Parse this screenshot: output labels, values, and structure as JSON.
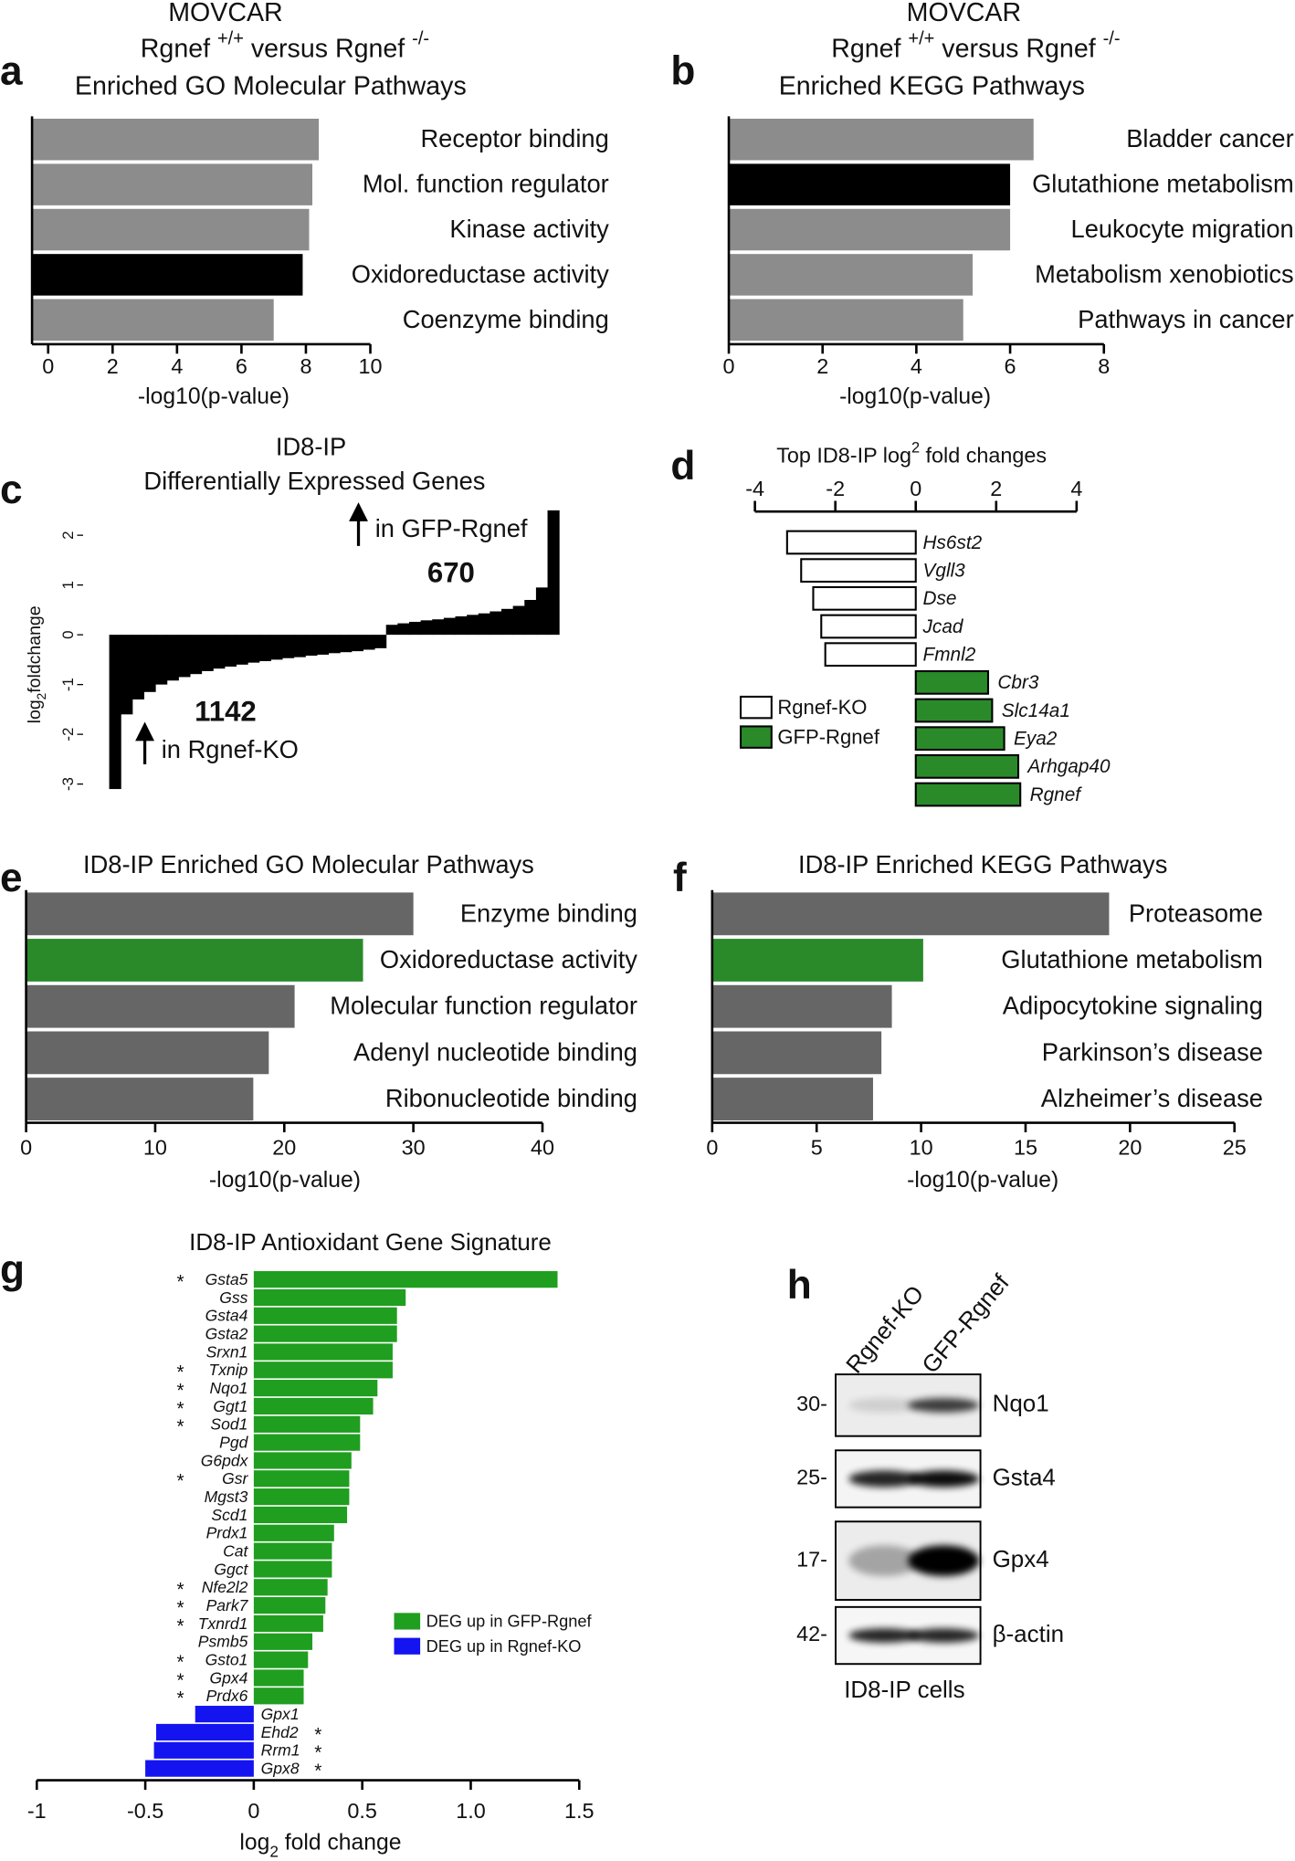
{
  "chart_data": [
    {
      "type": "bar",
      "panel": "a",
      "title": [
        "MOVCAR",
        [
          "Rgnef ",
          "+/+",
          " versus Rgnef ",
          "-/-"
        ],
        "Enriched GO Molecular Pathways"
      ],
      "categories": [
        "Receptor binding",
        "Mol. function regulator",
        "Kinase activity",
        "Oxidoreductase activity",
        "Coenzyme binding"
      ],
      "values": [
        8.4,
        8.2,
        8.1,
        7.9,
        7.0
      ],
      "colors": [
        "#8c8c8c",
        "#8c8c8c",
        "#8c8c8c",
        "#000000",
        "#8c8c8c"
      ],
      "xlabel": "-log10(p-value)",
      "xlim": [
        -0.5,
        10
      ],
      "xticks": [
        0,
        2,
        4,
        6,
        8,
        10
      ]
    },
    {
      "type": "bar",
      "panel": "b",
      "title": [
        "MOVCAR",
        [
          "Rgnef ",
          "+/+",
          " versus Rgnef ",
          "-/-"
        ],
        "Enriched KEGG Pathways"
      ],
      "categories": [
        "Bladder cancer",
        "Glutathione metabolism",
        "Leukocyte migration",
        "Metabolism xenobiotics",
        "Pathways in cancer"
      ],
      "values": [
        6.5,
        6.0,
        6.0,
        5.2,
        5.0
      ],
      "colors": [
        "#8c8c8c",
        "#000000",
        "#8c8c8c",
        "#8c8c8c",
        "#8c8c8c"
      ],
      "xlabel": "-log10(p-value)",
      "xlim": [
        0,
        8
      ],
      "xticks": [
        0,
        2,
        4,
        6,
        8
      ]
    },
    {
      "type": "waterfall",
      "panel": "c",
      "title": [
        "ID8-IP",
        "Differentially Expressed Genes"
      ],
      "ylabel": [
        "log",
        "2",
        "foldchange"
      ],
      "values": [
        -3.1,
        -1.6,
        -1.3,
        -1.15,
        -1.0,
        -0.92,
        -0.85,
        -0.79,
        -0.73,
        -0.68,
        -0.64,
        -0.6,
        -0.56,
        -0.53,
        -0.5,
        -0.47,
        -0.45,
        -0.42,
        -0.4,
        -0.37,
        -0.35,
        -0.33,
        -0.3,
        -0.27,
        0.2,
        0.23,
        0.26,
        0.29,
        0.31,
        0.34,
        0.37,
        0.4,
        0.43,
        0.47,
        0.52,
        0.58,
        0.7,
        0.95,
        2.5
      ],
      "color": "#000000",
      "ylim": [
        -3.2,
        2.5
      ],
      "yticks": [
        -3,
        -2,
        -1,
        0,
        1,
        2
      ],
      "annotations": [
        {
          "text": "in GFP-Rgnef",
          "count": 670,
          "color": "#2a8a2a"
        },
        {
          "text": "in Rgnef-KO",
          "count": 1142,
          "color": "#1a1aee"
        }
      ]
    },
    {
      "type": "diverging",
      "panel": "d",
      "title": [
        [
          "Top ID8-IP log",
          "2",
          " fold changes"
        ]
      ],
      "categories": [
        "Hs6st2",
        "Vgll3",
        "Dse",
        "Jcad",
        "Fmnl2",
        "Cbr3",
        "Slc14a1",
        "Eya2",
        "Arhgap40",
        "Rgnef"
      ],
      "series": [
        {
          "name": "Rgnef-KO",
          "color": "#ffffff",
          "values": [
            -3.2,
            -2.85,
            -2.55,
            -2.35,
            -2.25,
            null,
            null,
            null,
            null,
            null
          ]
        },
        {
          "name": "GFP-Rgnef",
          "color": "#2a8a2a",
          "values": [
            null,
            null,
            null,
            null,
            null,
            1.8,
            1.9,
            2.2,
            2.55,
            2.6
          ]
        }
      ],
      "xlim": [
        -4,
        4
      ],
      "xticks": [
        -4,
        -2,
        0,
        2,
        4
      ]
    },
    {
      "type": "bar",
      "panel": "e",
      "title": "ID8-IP Enriched GO Molecular Pathways",
      "categories": [
        "Enzyme binding",
        "Oxidoreductase activity",
        "Molecular function regulator",
        "Adenyl nucleotide binding",
        "Ribonucleotide binding"
      ],
      "values": [
        30.0,
        26.1,
        20.8,
        18.8,
        17.6
      ],
      "colors": [
        "#666666",
        "#2a8a2a",
        "#666666",
        "#666666",
        "#666666"
      ],
      "xlabel": "-log10(p-value)",
      "xlim": [
        0,
        40
      ],
      "xticks": [
        0,
        10,
        20,
        30,
        40
      ]
    },
    {
      "type": "bar",
      "panel": "f",
      "title": "ID8-IP Enriched KEGG Pathways",
      "categories": [
        "Proteasome",
        "Glutathione metabolism",
        "Adipocytokine signaling",
        "Parkinson’s disease",
        "Alzheimer’s disease"
      ],
      "values": [
        19.0,
        10.1,
        8.6,
        8.1,
        7.7
      ],
      "colors": [
        "#666666",
        "#2a8a2a",
        "#666666",
        "#666666",
        "#666666"
      ],
      "xlabel": "-log10(p-value)",
      "xlim": [
        0,
        25
      ],
      "xticks": [
        0,
        5,
        10,
        15,
        20,
        25
      ]
    },
    {
      "type": "diverging",
      "panel": "g",
      "title": "ID8-IP Antioxidant Gene Signature",
      "categories": [
        "Gsta5",
        "Gss",
        "Gsta4",
        "Gsta2",
        "Srxn1",
        "Txnip",
        "Nqo1",
        "Ggt1",
        "Sod1",
        "Pgd",
        "G6pdx",
        "Gsr",
        "Mgst3",
        "Scd1",
        "Prdx1",
        "Cat",
        "Ggct",
        "Nfe2l2",
        "Park7",
        "Txnrd1",
        "Psmb5",
        "Gsto1",
        "Gpx4",
        "Prdx6",
        "Gpx1",
        "Ehd2",
        "Rrm1",
        "Gpx8"
      ],
      "markers": [
        "*",
        null,
        null,
        null,
        null,
        "*",
        "*",
        "*",
        "*",
        null,
        null,
        "*",
        null,
        null,
        null,
        null,
        null,
        "*",
        "*",
        "*",
        null,
        "*",
        "*",
        "*",
        null,
        "*",
        "*",
        "*"
      ],
      "series": [
        {
          "name": "DEG up in GFP-Rgnef",
          "color": "#1f9e1f",
          "values": [
            1.4,
            0.7,
            0.66,
            0.66,
            0.64,
            0.64,
            0.57,
            0.55,
            0.49,
            0.49,
            0.45,
            0.44,
            0.44,
            0.43,
            0.37,
            0.36,
            0.36,
            0.34,
            0.33,
            0.32,
            0.27,
            0.25,
            0.23,
            0.23,
            null,
            null,
            null,
            null
          ]
        },
        {
          "name": "DEG up in Rgnef-KO",
          "color": "#1414f0",
          "values": [
            null,
            null,
            null,
            null,
            null,
            null,
            null,
            null,
            null,
            null,
            null,
            null,
            null,
            null,
            null,
            null,
            null,
            null,
            null,
            null,
            null,
            null,
            null,
            null,
            -0.27,
            -0.45,
            -0.46,
            -0.5
          ]
        }
      ],
      "xlabel": [
        "log",
        "2",
        " fold change"
      ],
      "xlim": [
        -1,
        1.5
      ],
      "xticks": [
        -1,
        -0.5,
        0,
        0.5,
        {
          "value": 1,
          "label": "1.0"
        },
        1.5
      ]
    },
    {
      "type": "blot",
      "panel": "h",
      "lanes": [
        "Rgnef-KO",
        "GFP-Rgnef"
      ],
      "rows": [
        {
          "marker": "30-",
          "label": "Nqo1"
        },
        {
          "marker": "25-",
          "label": "Gsta4"
        },
        {
          "marker": "17-",
          "label": "Gpx4"
        },
        {
          "marker": "42-",
          "label": "β-actin"
        }
      ],
      "caption": "ID8-IP cells"
    }
  ]
}
